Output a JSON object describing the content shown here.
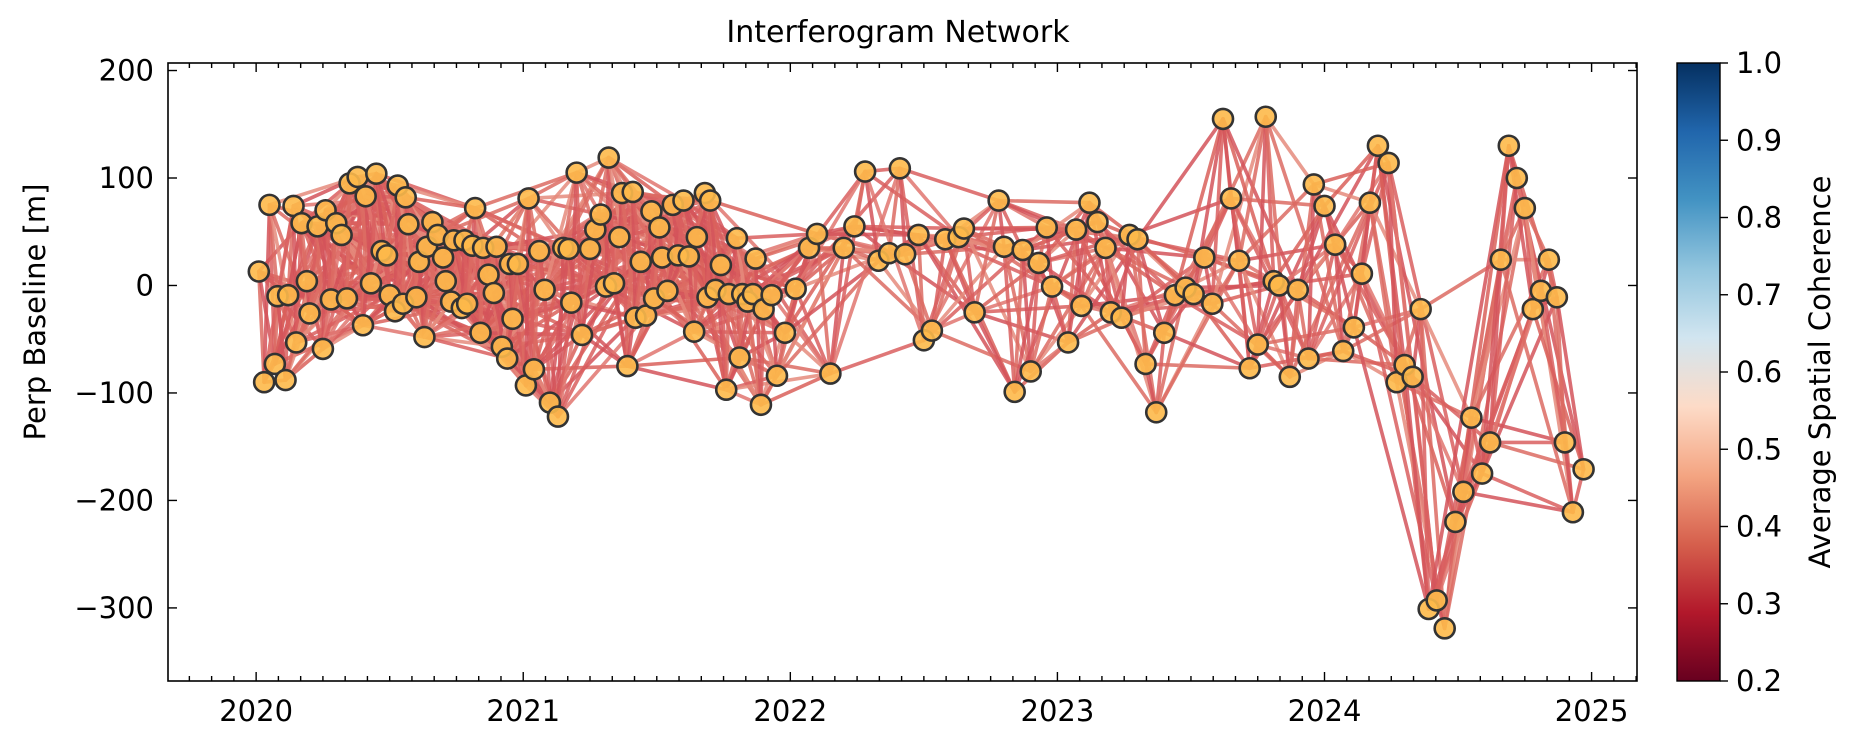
{
  "chart_data": {
    "type": "network",
    "title": "Interferogram Network",
    "ylabel": "Perp Baseline [m]",
    "xlim": [
      2019.67,
      2025.17
    ],
    "ylim": [
      -368,
      207
    ],
    "x_ticks": [
      2020,
      2021,
      2022,
      2023,
      2024,
      2025
    ],
    "y_ticks": [
      200,
      100,
      0,
      -100,
      -200,
      -300
    ],
    "x_tick_labels": [
      "2020",
      "2021",
      "2022",
      "2023",
      "2024",
      "2025"
    ],
    "y_tick_labels": [
      "200",
      "100",
      "0",
      "−100",
      "−200",
      "−300"
    ],
    "colorbar": {
      "label": "Average Spatial Coherence",
      "range": [
        0.2,
        1.0
      ],
      "ticks": [
        1.0,
        0.9,
        0.8,
        0.7,
        0.6,
        0.5,
        0.4,
        0.3,
        0.2
      ],
      "tick_labels": [
        "1.0",
        "0.9",
        "0.8",
        "0.7",
        "0.6",
        "0.5",
        "0.4",
        "0.3",
        "0.2"
      ],
      "colors": [
        "#67001f",
        "#b2182b",
        "#d6604d",
        "#f4a582",
        "#fddbc7",
        "#d1e5f0",
        "#92c5de",
        "#4393c3",
        "#2166ac",
        "#053061"
      ]
    },
    "point_color": "#fdb94a",
    "point_edge_color": "#333333",
    "grid": false,
    "nodes": [
      {
        "x": 2020.01,
        "y": 13
      },
      {
        "x": 2020.03,
        "y": -90
      },
      {
        "x": 2020.05,
        "y": 75
      },
      {
        "x": 2020.07,
        "y": -73
      },
      {
        "x": 2020.08,
        "y": -10
      },
      {
        "x": 2020.11,
        "y": -88
      },
      {
        "x": 2020.12,
        "y": -9
      },
      {
        "x": 2020.14,
        "y": 74
      },
      {
        "x": 2020.15,
        "y": -53
      },
      {
        "x": 2020.17,
        "y": 58
      },
      {
        "x": 2020.19,
        "y": 4
      },
      {
        "x": 2020.2,
        "y": -26
      },
      {
        "x": 2020.23,
        "y": 55
      },
      {
        "x": 2020.25,
        "y": -59
      },
      {
        "x": 2020.26,
        "y": 70
      },
      {
        "x": 2020.28,
        "y": -13
      },
      {
        "x": 2020.3,
        "y": 58
      },
      {
        "x": 2020.32,
        "y": 47
      },
      {
        "x": 2020.34,
        "y": -12
      },
      {
        "x": 2020.35,
        "y": 95
      },
      {
        "x": 2020.38,
        "y": 101
      },
      {
        "x": 2020.4,
        "y": -37
      },
      {
        "x": 2020.41,
        "y": 83
      },
      {
        "x": 2020.43,
        "y": 2
      },
      {
        "x": 2020.45,
        "y": 104
      },
      {
        "x": 2020.47,
        "y": 32
      },
      {
        "x": 2020.49,
        "y": 28
      },
      {
        "x": 2020.5,
        "y": -9
      },
      {
        "x": 2020.52,
        "y": -24
      },
      {
        "x": 2020.53,
        "y": 93
      },
      {
        "x": 2020.55,
        "y": -17
      },
      {
        "x": 2020.56,
        "y": 82
      },
      {
        "x": 2020.57,
        "y": 57
      },
      {
        "x": 2020.6,
        "y": -11
      },
      {
        "x": 2020.61,
        "y": 22
      },
      {
        "x": 2020.63,
        "y": -48
      },
      {
        "x": 2020.64,
        "y": 36
      },
      {
        "x": 2020.66,
        "y": 59
      },
      {
        "x": 2020.68,
        "y": 47
      },
      {
        "x": 2020.7,
        "y": 26
      },
      {
        "x": 2020.71,
        "y": 4
      },
      {
        "x": 2020.73,
        "y": -15
      },
      {
        "x": 2020.74,
        "y": 42
      },
      {
        "x": 2020.77,
        "y": -21
      },
      {
        "x": 2020.78,
        "y": 42
      },
      {
        "x": 2020.79,
        "y": -17
      },
      {
        "x": 2020.81,
        "y": 37
      },
      {
        "x": 2020.82,
        "y": 72
      },
      {
        "x": 2020.84,
        "y": -44
      },
      {
        "x": 2020.85,
        "y": 35
      },
      {
        "x": 2020.87,
        "y": 10
      },
      {
        "x": 2020.89,
        "y": -7
      },
      {
        "x": 2020.9,
        "y": 36
      },
      {
        "x": 2020.92,
        "y": -57
      },
      {
        "x": 2020.94,
        "y": -68
      },
      {
        "x": 2020.95,
        "y": 20
      },
      {
        "x": 2020.96,
        "y": -31
      },
      {
        "x": 2020.98,
        "y": 20
      },
      {
        "x": 2021.01,
        "y": -93
      },
      {
        "x": 2021.02,
        "y": 81
      },
      {
        "x": 2021.04,
        "y": -78
      },
      {
        "x": 2021.06,
        "y": 32
      },
      {
        "x": 2021.08,
        "y": -4
      },
      {
        "x": 2021.1,
        "y": -109
      },
      {
        "x": 2021.13,
        "y": -122
      },
      {
        "x": 2021.15,
        "y": 35
      },
      {
        "x": 2021.17,
        "y": 34
      },
      {
        "x": 2021.18,
        "y": -16
      },
      {
        "x": 2021.2,
        "y": 105
      },
      {
        "x": 2021.22,
        "y": -46
      },
      {
        "x": 2021.25,
        "y": 34
      },
      {
        "x": 2021.27,
        "y": 52
      },
      {
        "x": 2021.29,
        "y": 66
      },
      {
        "x": 2021.31,
        "y": -1
      },
      {
        "x": 2021.32,
        "y": 119
      },
      {
        "x": 2021.34,
        "y": 2
      },
      {
        "x": 2021.36,
        "y": 45
      },
      {
        "x": 2021.37,
        "y": 86
      },
      {
        "x": 2021.39,
        "y": -75
      },
      {
        "x": 2021.41,
        "y": 87
      },
      {
        "x": 2021.42,
        "y": -30
      },
      {
        "x": 2021.44,
        "y": 22
      },
      {
        "x": 2021.46,
        "y": -28
      },
      {
        "x": 2021.48,
        "y": 69
      },
      {
        "x": 2021.49,
        "y": -12
      },
      {
        "x": 2021.51,
        "y": 54
      },
      {
        "x": 2021.52,
        "y": 26
      },
      {
        "x": 2021.54,
        "y": -5
      },
      {
        "x": 2021.56,
        "y": 75
      },
      {
        "x": 2021.58,
        "y": 28
      },
      {
        "x": 2021.6,
        "y": 79
      },
      {
        "x": 2021.62,
        "y": 27
      },
      {
        "x": 2021.64,
        "y": -43
      },
      {
        "x": 2021.65,
        "y": 45
      },
      {
        "x": 2021.68,
        "y": 86
      },
      {
        "x": 2021.69,
        "y": -11
      },
      {
        "x": 2021.7,
        "y": 79
      },
      {
        "x": 2021.72,
        "y": -4
      },
      {
        "x": 2021.74,
        "y": 19
      },
      {
        "x": 2021.76,
        "y": -97
      },
      {
        "x": 2021.77,
        "y": -8
      },
      {
        "x": 2021.8,
        "y": 44
      },
      {
        "x": 2021.81,
        "y": -67
      },
      {
        "x": 2021.82,
        "y": -8
      },
      {
        "x": 2021.84,
        "y": -15
      },
      {
        "x": 2021.86,
        "y": -8
      },
      {
        "x": 2021.87,
        "y": 25
      },
      {
        "x": 2021.89,
        "y": -111
      },
      {
        "x": 2021.9,
        "y": -22
      },
      {
        "x": 2021.93,
        "y": -9
      },
      {
        "x": 2021.95,
        "y": -84
      },
      {
        "x": 2021.98,
        "y": -44
      },
      {
        "x": 2022.02,
        "y": -3
      },
      {
        "x": 2022.07,
        "y": 35
      },
      {
        "x": 2022.1,
        "y": 48
      },
      {
        "x": 2022.15,
        "y": -82
      },
      {
        "x": 2022.2,
        "y": 35
      },
      {
        "x": 2022.24,
        "y": 55
      },
      {
        "x": 2022.28,
        "y": 106
      },
      {
        "x": 2022.33,
        "y": 23
      },
      {
        "x": 2022.37,
        "y": 30
      },
      {
        "x": 2022.41,
        "y": 109
      },
      {
        "x": 2022.43,
        "y": 29
      },
      {
        "x": 2022.48,
        "y": 47
      },
      {
        "x": 2022.5,
        "y": -51
      },
      {
        "x": 2022.53,
        "y": -42
      },
      {
        "x": 2022.58,
        "y": 43
      },
      {
        "x": 2022.63,
        "y": 45
      },
      {
        "x": 2022.65,
        "y": 53
      },
      {
        "x": 2022.69,
        "y": -25
      },
      {
        "x": 2022.78,
        "y": 79
      },
      {
        "x": 2022.8,
        "y": 36
      },
      {
        "x": 2022.84,
        "y": -99
      },
      {
        "x": 2022.87,
        "y": 33
      },
      {
        "x": 2022.9,
        "y": -80
      },
      {
        "x": 2022.93,
        "y": 21
      },
      {
        "x": 2022.96,
        "y": 54
      },
      {
        "x": 2022.98,
        "y": -1
      },
      {
        "x": 2023.04,
        "y": -53
      },
      {
        "x": 2023.07,
        "y": 52
      },
      {
        "x": 2023.09,
        "y": -19
      },
      {
        "x": 2023.12,
        "y": 77
      },
      {
        "x": 2023.15,
        "y": 59
      },
      {
        "x": 2023.18,
        "y": 35
      },
      {
        "x": 2023.2,
        "y": -25
      },
      {
        "x": 2023.24,
        "y": -30
      },
      {
        "x": 2023.27,
        "y": 47
      },
      {
        "x": 2023.3,
        "y": 43
      },
      {
        "x": 2023.33,
        "y": -73
      },
      {
        "x": 2023.37,
        "y": -118
      },
      {
        "x": 2023.4,
        "y": -44
      },
      {
        "x": 2023.44,
        "y": -9
      },
      {
        "x": 2023.48,
        "y": -2
      },
      {
        "x": 2023.51,
        "y": -8
      },
      {
        "x": 2023.55,
        "y": 26
      },
      {
        "x": 2023.58,
        "y": -17
      },
      {
        "x": 2023.62,
        "y": 155
      },
      {
        "x": 2023.65,
        "y": 81
      },
      {
        "x": 2023.68,
        "y": 23
      },
      {
        "x": 2023.72,
        "y": -77
      },
      {
        "x": 2023.75,
        "y": -55
      },
      {
        "x": 2023.78,
        "y": 157
      },
      {
        "x": 2023.81,
        "y": 4
      },
      {
        "x": 2023.83,
        "y": 0
      },
      {
        "x": 2023.87,
        "y": -85
      },
      {
        "x": 2023.9,
        "y": -4
      },
      {
        "x": 2023.94,
        "y": -68
      },
      {
        "x": 2023.96,
        "y": 94
      },
      {
        "x": 2024.0,
        "y": 74
      },
      {
        "x": 2024.04,
        "y": 38
      },
      {
        "x": 2024.07,
        "y": -61
      },
      {
        "x": 2024.11,
        "y": -39
      },
      {
        "x": 2024.14,
        "y": 11
      },
      {
        "x": 2024.17,
        "y": 77
      },
      {
        "x": 2024.2,
        "y": 130
      },
      {
        "x": 2024.24,
        "y": 114
      },
      {
        "x": 2024.27,
        "y": -90
      },
      {
        "x": 2024.3,
        "y": -74
      },
      {
        "x": 2024.33,
        "y": -85
      },
      {
        "x": 2024.36,
        "y": -22
      },
      {
        "x": 2024.39,
        "y": -301
      },
      {
        "x": 2024.42,
        "y": -293
      },
      {
        "x": 2024.45,
        "y": -319
      },
      {
        "x": 2024.49,
        "y": -220
      },
      {
        "x": 2024.52,
        "y": -192
      },
      {
        "x": 2024.55,
        "y": -123
      },
      {
        "x": 2024.59,
        "y": -175
      },
      {
        "x": 2024.62,
        "y": -146
      },
      {
        "x": 2024.66,
        "y": 24
      },
      {
        "x": 2024.69,
        "y": 130
      },
      {
        "x": 2024.72,
        "y": 100
      },
      {
        "x": 2024.75,
        "y": 72
      },
      {
        "x": 2024.78,
        "y": -22
      },
      {
        "x": 2024.81,
        "y": -5
      },
      {
        "x": 2024.84,
        "y": 24
      },
      {
        "x": 2024.87,
        "y": -11
      },
      {
        "x": 2024.9,
        "y": -146
      },
      {
        "x": 2024.93,
        "y": -211
      },
      {
        "x": 2024.97,
        "y": -171
      }
    ]
  }
}
